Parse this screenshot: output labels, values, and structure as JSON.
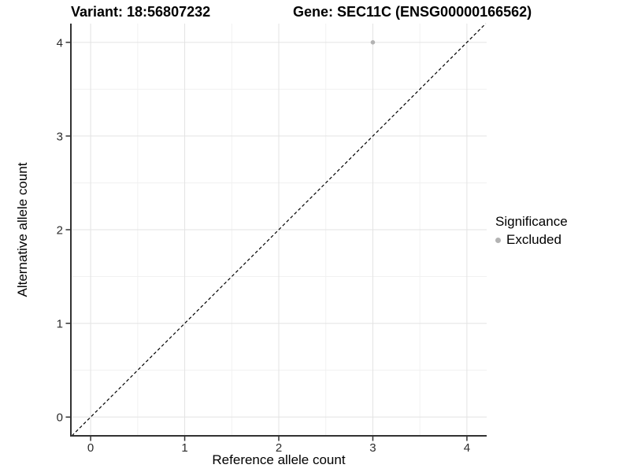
{
  "title": {
    "variant": "Variant: 18:56807232",
    "gene": "Gene: SEC11C (ENSG00000166562)"
  },
  "chart_data": {
    "type": "scatter",
    "title": "Variant: 18:56807232   Gene: SEC11C (ENSG00000166562)",
    "xlabel": "Reference allele count",
    "ylabel": "Alternative allele count",
    "xlim": [
      -0.21,
      4.21
    ],
    "ylim": [
      -0.2,
      4.2
    ],
    "x_ticks": [
      0,
      1,
      2,
      3,
      4
    ],
    "y_ticks": [
      0,
      1,
      2,
      3,
      4
    ],
    "grid": "major and minor gridlines, light gray on white",
    "legend_position": "right",
    "identity_line": {
      "style": "dashed",
      "slope": 1,
      "intercept": 0,
      "color": "#000000"
    },
    "series": [
      {
        "name": "Excluded",
        "color": "#b3b3b3",
        "points": [
          {
            "x": 3,
            "y": 4
          }
        ]
      }
    ],
    "legend": {
      "title": "Significance",
      "entries": [
        {
          "label": "Excluded",
          "color": "#b3b3b3"
        }
      ]
    }
  },
  "colors": {
    "axis_line": "#333333",
    "tick_mark": "#333333",
    "tick_label": "#2b2b2b",
    "grid_major": "#e3e3e3",
    "grid_minor": "#f1f1f1",
    "point": "#b3b3b3",
    "background": "#ffffff"
  }
}
